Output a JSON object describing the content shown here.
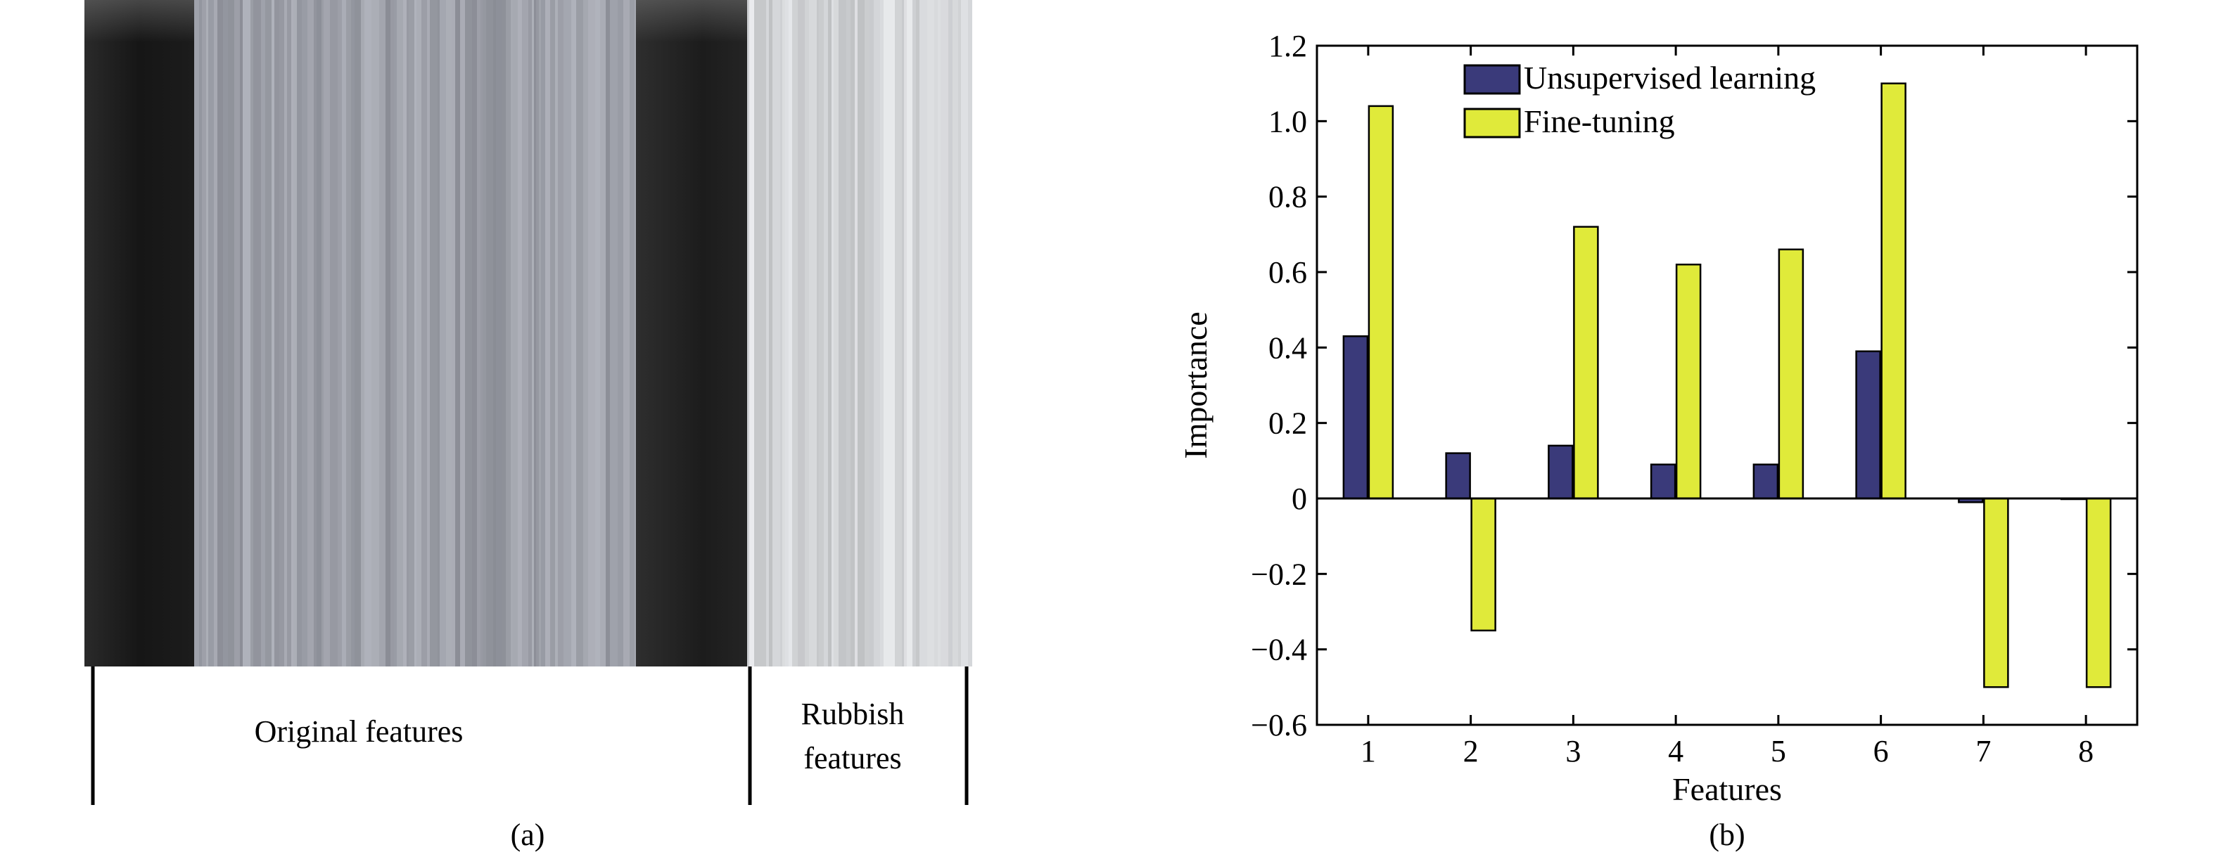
{
  "panels": {
    "a": {
      "caption": "(a)",
      "labels": {
        "original": "Original features",
        "rubbish_line1": "Rubbish",
        "rubbish_line2": "features"
      },
      "column_groups": [
        {
          "name": "dark-1",
          "tone": "dark"
        },
        {
          "name": "original-gray",
          "tone": "mid"
        },
        {
          "name": "dark-2",
          "tone": "dark"
        },
        {
          "name": "rubbish-light",
          "tone": "light"
        }
      ]
    },
    "b": {
      "caption": "(b)"
    }
  },
  "colors": {
    "unsupervised": "#3a3a7a",
    "finetuning": "#e0ea3a",
    "axis": "#000000",
    "heat_dark": "#1a1a1a",
    "heat_mid": "#9ea3aa",
    "heat_light": "#d2d4d6"
  },
  "chart_data": {
    "type": "bar",
    "categories": [
      "1",
      "2",
      "3",
      "4",
      "5",
      "6",
      "7",
      "8"
    ],
    "series": [
      {
        "name": "Unsupervised learning",
        "values": [
          0.43,
          0.12,
          0.14,
          0.09,
          0.09,
          0.39,
          -0.01,
          0.0
        ]
      },
      {
        "name": "Fine-tuning",
        "values": [
          1.04,
          -0.35,
          0.72,
          0.62,
          0.66,
          1.1,
          -0.5,
          -0.5
        ]
      }
    ],
    "title": "",
    "xlabel": "Features",
    "ylabel": "Importance",
    "ylim": [
      -0.6,
      1.2
    ],
    "yticks": [
      -0.6,
      -0.4,
      -0.2,
      0,
      0.2,
      0.4,
      0.6,
      0.8,
      1.0,
      1.2
    ],
    "yticklabels": [
      "−0.6",
      "−0.4",
      "−0.2",
      "0",
      "0.2",
      "0.4",
      "0.6",
      "0.8",
      "1.0",
      "1.2"
    ],
    "legend": "top-left",
    "grid": false
  }
}
